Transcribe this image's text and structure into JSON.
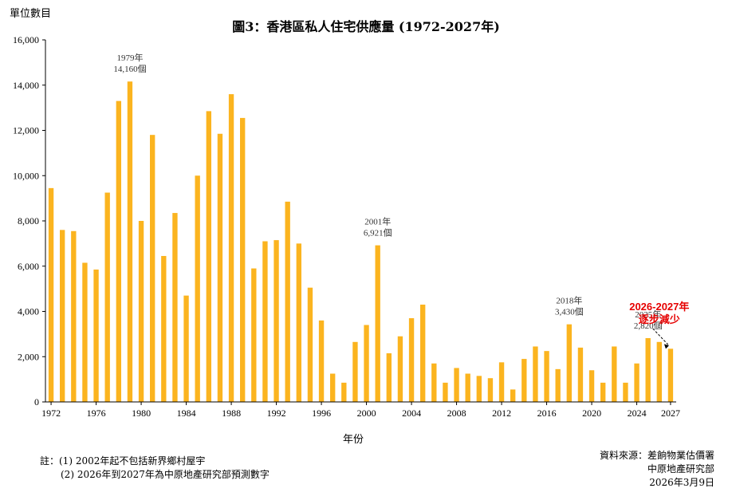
{
  "header": {
    "unit_label": "單位數目",
    "title": "圖3：香港區私人住宅供應量 (1972-2027年)"
  },
  "xaxis_label": "年份",
  "notes": {
    "line1": "註：(1) 2002年起不包括新界鄉村屋宇",
    "line2": "(2) 2026年到2027年為中原地產研究部預測數字"
  },
  "source": {
    "line1": "資料來源：差餉物業估價署",
    "line2": "中原地產研究部",
    "line3": "2026年3月9日"
  },
  "colors": {
    "bar": "#FBB41F",
    "highlight_text": "#E60000",
    "axis": "#000000"
  },
  "chart_data": {
    "type": "bar",
    "x": [
      1972,
      1973,
      1974,
      1975,
      1976,
      1977,
      1978,
      1979,
      1980,
      1981,
      1982,
      1983,
      1984,
      1985,
      1986,
      1987,
      1988,
      1989,
      1990,
      1991,
      1992,
      1993,
      1994,
      1995,
      1996,
      1997,
      1998,
      1999,
      2000,
      2001,
      2002,
      2003,
      2004,
      2005,
      2006,
      2007,
      2008,
      2009,
      2010,
      2011,
      2012,
      2013,
      2014,
      2015,
      2016,
      2017,
      2018,
      2019,
      2020,
      2021,
      2022,
      2023,
      2024,
      2025,
      2026,
      2027
    ],
    "values": [
      9450,
      7600,
      7550,
      6150,
      5850,
      9250,
      13300,
      14160,
      8000,
      11800,
      6450,
      8350,
      4700,
      10000,
      12850,
      11850,
      13600,
      12550,
      5900,
      7100,
      7150,
      8850,
      7000,
      5050,
      3600,
      1250,
      850,
      2650,
      3400,
      6921,
      2150,
      2900,
      3700,
      4300,
      1700,
      850,
      1500,
      1250,
      1150,
      1050,
      1750,
      550,
      1900,
      2450,
      2250,
      1450,
      3430,
      2400,
      1400,
      850,
      2450,
      850,
      1700,
      2820,
      2650,
      2350
    ],
    "xticks": [
      "1972",
      "1976",
      "1980",
      "1984",
      "1988",
      "1992",
      "1996",
      "2000",
      "2004",
      "2008",
      "2012",
      "2016",
      "2020",
      "2024",
      "2027"
    ],
    "yticks": [
      "0",
      "2,000",
      "4,000",
      "6,000",
      "8,000",
      "10,000",
      "12,000",
      "14,000",
      "16,000"
    ],
    "ylim": [
      0,
      16000
    ],
    "grid": false,
    "annotations": [
      {
        "year": 1979,
        "line1": "1979年",
        "line2": "14,160個"
      },
      {
        "year": 2001,
        "line1": "2001年",
        "line2": "6,921個"
      },
      {
        "year": 2018,
        "line1": "2018年",
        "line2": "3,430個"
      },
      {
        "year": 2025,
        "line1": "2025年",
        "line2": "2,820個"
      }
    ],
    "highlight": {
      "line1": "2026-2027年",
      "line2": "逐步減少"
    }
  }
}
